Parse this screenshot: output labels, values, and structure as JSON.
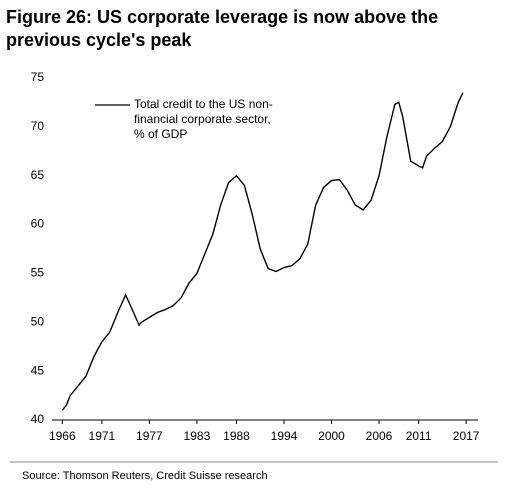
{
  "chart_data": {
    "type": "line",
    "title": "Figure 26: US corporate leverage is now above the previous cycle's peak",
    "source": "Source: Thomson Reuters, Credit Suisse research",
    "x": [
      1966,
      1966.5,
      1967,
      1968,
      1969,
      1970,
      1971,
      1972,
      1973,
      1974,
      1975,
      1975.7,
      1976,
      1977,
      1978,
      1979,
      1980,
      1981,
      1982,
      1983,
      1984,
      1985,
      1986,
      1987,
      1988,
      1989,
      1990,
      1991,
      1992,
      1993,
      1994,
      1995,
      1996,
      1997,
      1998,
      1999,
      2000,
      2001,
      2002,
      2003,
      2004,
      2005,
      2006,
      2007,
      2008,
      2008.5,
      2009,
      2010,
      2011,
      2011.5,
      2012,
      2013,
      2014,
      2015,
      2016,
      2016.6
    ],
    "series": [
      {
        "name": "Total credit to the US non-financial corporate sector, % of GDP",
        "color": "#000000",
        "values": [
          41,
          41.5,
          42.5,
          43.5,
          44.5,
          46.5,
          48,
          49,
          51,
          52.8,
          51,
          49.7,
          50,
          50.5,
          51,
          51.3,
          51.7,
          52.5,
          54,
          55,
          57,
          59,
          62,
          64.3,
          65,
          64,
          61,
          57.5,
          55.5,
          55.2,
          55.6,
          55.8,
          56.5,
          58,
          62,
          63.8,
          64.5,
          64.6,
          63.5,
          62,
          61.5,
          62.5,
          65,
          69,
          72.3,
          72.5,
          71,
          66.5,
          66,
          65.8,
          67,
          67.8,
          68.5,
          70,
          72.5,
          73.5
        ]
      }
    ],
    "xlim": [
      1964.7,
      2018.5
    ],
    "xticks": [
      1966,
      1971,
      1977,
      1983,
      1988,
      1994,
      2000,
      2006,
      2011,
      2017
    ],
    "ylim": [
      40,
      75
    ],
    "yticks": [
      40,
      45,
      50,
      55,
      60,
      65,
      70,
      75
    ],
    "grid": false
  }
}
